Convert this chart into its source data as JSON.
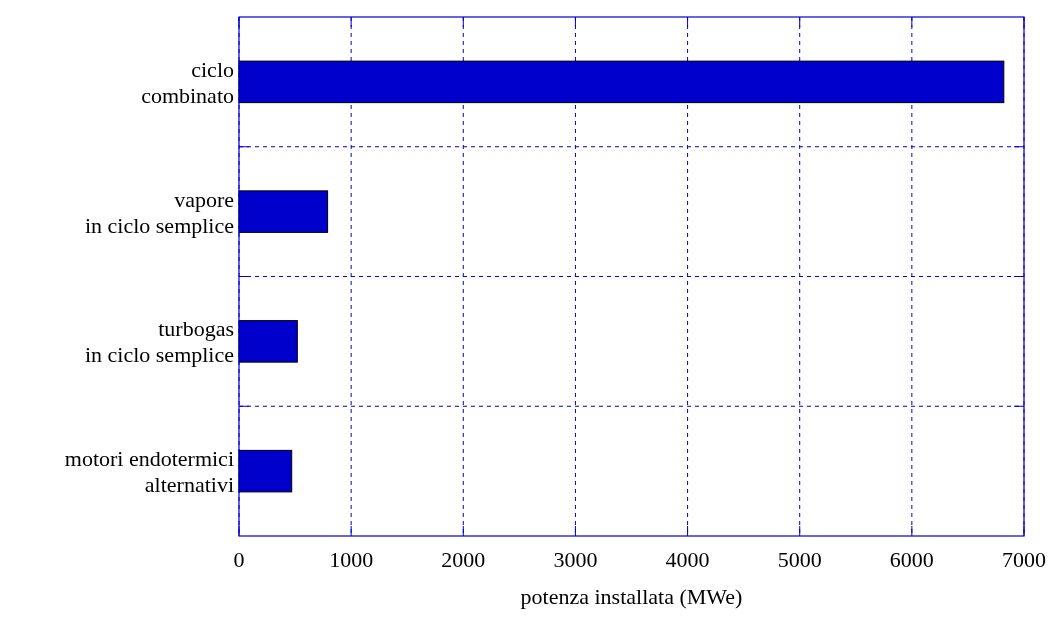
{
  "chart_data": {
    "type": "bar",
    "orientation": "horizontal",
    "xlabel": "potenza installata (MWe)",
    "categories": [
      "ciclo\ncombinato",
      "vapore\nin ciclo semplice",
      "turbogas\nin ciclo semplice",
      "motori endotermici\nalternativi"
    ],
    "values": [
      6820,
      790,
      520,
      470
    ],
    "color": "#0000cc",
    "xlim": [
      0,
      7000
    ],
    "xticks": [
      0,
      1000,
      2000,
      3000,
      4000,
      5000,
      6000,
      7000
    ],
    "grid": true
  }
}
